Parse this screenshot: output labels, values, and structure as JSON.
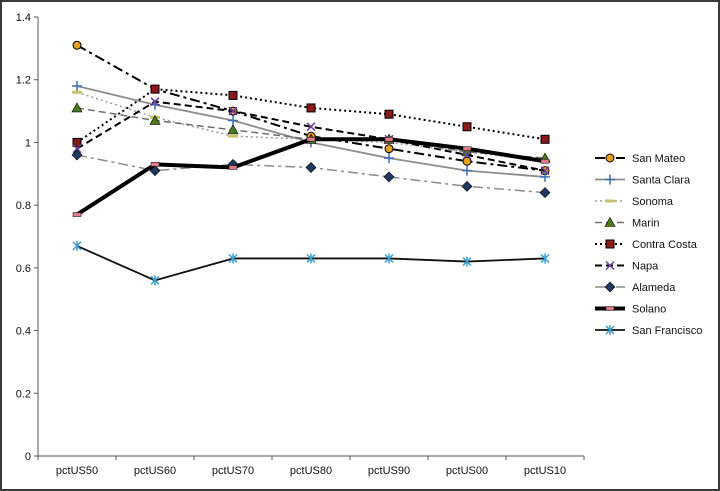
{
  "chart_data": {
    "type": "line",
    "categories": [
      "pctUS50",
      "pctUS60",
      "pctUS70",
      "pctUS80",
      "pctUS90",
      "pctUS00",
      "pctUS10"
    ],
    "ylim": [
      0,
      1.4
    ],
    "yticks": [
      "0",
      "0.2",
      "0.4",
      "0.6",
      "0.8",
      "1",
      "1.2",
      "1.4"
    ],
    "grid": false,
    "legend_position": "right",
    "series": [
      {
        "name": "San Mateo",
        "values": [
          1.31,
          1.17,
          1.1,
          1.02,
          0.98,
          0.94,
          0.91
        ],
        "color": "#000000",
        "dash": "10,4,3,4",
        "width": 2,
        "marker": "circle",
        "marker_fill": "#e8a020"
      },
      {
        "name": "Santa Clara",
        "values": [
          1.18,
          1.12,
          1.07,
          1.0,
          0.95,
          0.91,
          0.89
        ],
        "color": "#8c8c8c",
        "dash": "",
        "width": 1.8,
        "marker": "plus",
        "marker_fill": "#3b6fb6"
      },
      {
        "name": "Sonoma",
        "values": [
          1.16,
          1.08,
          1.02,
          1.01,
          1.0,
          0.97,
          0.94
        ],
        "color": "#9a9a9a",
        "dash": "2,3",
        "width": 1.5,
        "marker": "dash",
        "marker_fill": "#c9c26a"
      },
      {
        "name": "Marin",
        "values": [
          1.11,
          1.07,
          1.04,
          1.01,
          1.01,
          0.97,
          0.95
        ],
        "color": "#6e6e6e",
        "dash": "7,4",
        "width": 1.5,
        "marker": "triangle",
        "marker_fill": "#4a7a1c"
      },
      {
        "name": "Contra Costa",
        "values": [
          1.0,
          1.17,
          1.15,
          1.11,
          1.09,
          1.05,
          1.01
        ],
        "color": "#000000",
        "dash": "2,3",
        "width": 2,
        "marker": "square",
        "marker_fill": "#8b1a1a"
      },
      {
        "name": "Napa",
        "values": [
          0.98,
          1.13,
          1.1,
          1.05,
          1.01,
          0.96,
          0.91
        ],
        "color": "#000000",
        "dash": "7,4",
        "width": 2,
        "marker": "x",
        "marker_fill": "#6a3d9a"
      },
      {
        "name": "Alameda",
        "values": [
          0.96,
          0.91,
          0.93,
          0.92,
          0.89,
          0.86,
          0.84
        ],
        "color": "#8c8c8c",
        "dash": "10,4,3,4",
        "width": 1.5,
        "marker": "diamond",
        "marker_fill": "#1f3a5f"
      },
      {
        "name": "Solano",
        "values": [
          0.77,
          0.93,
          0.92,
          1.01,
          1.01,
          0.98,
          0.94
        ],
        "color": "#000000",
        "dash": "",
        "width": 4,
        "marker": "bar",
        "marker_fill": "#e07b8a"
      },
      {
        "name": "San Francisco",
        "values": [
          0.67,
          0.56,
          0.63,
          0.63,
          0.63,
          0.62,
          0.63
        ],
        "color": "#111111",
        "dash": "",
        "width": 1.8,
        "marker": "star",
        "marker_fill": "#3aa0d0"
      }
    ]
  }
}
